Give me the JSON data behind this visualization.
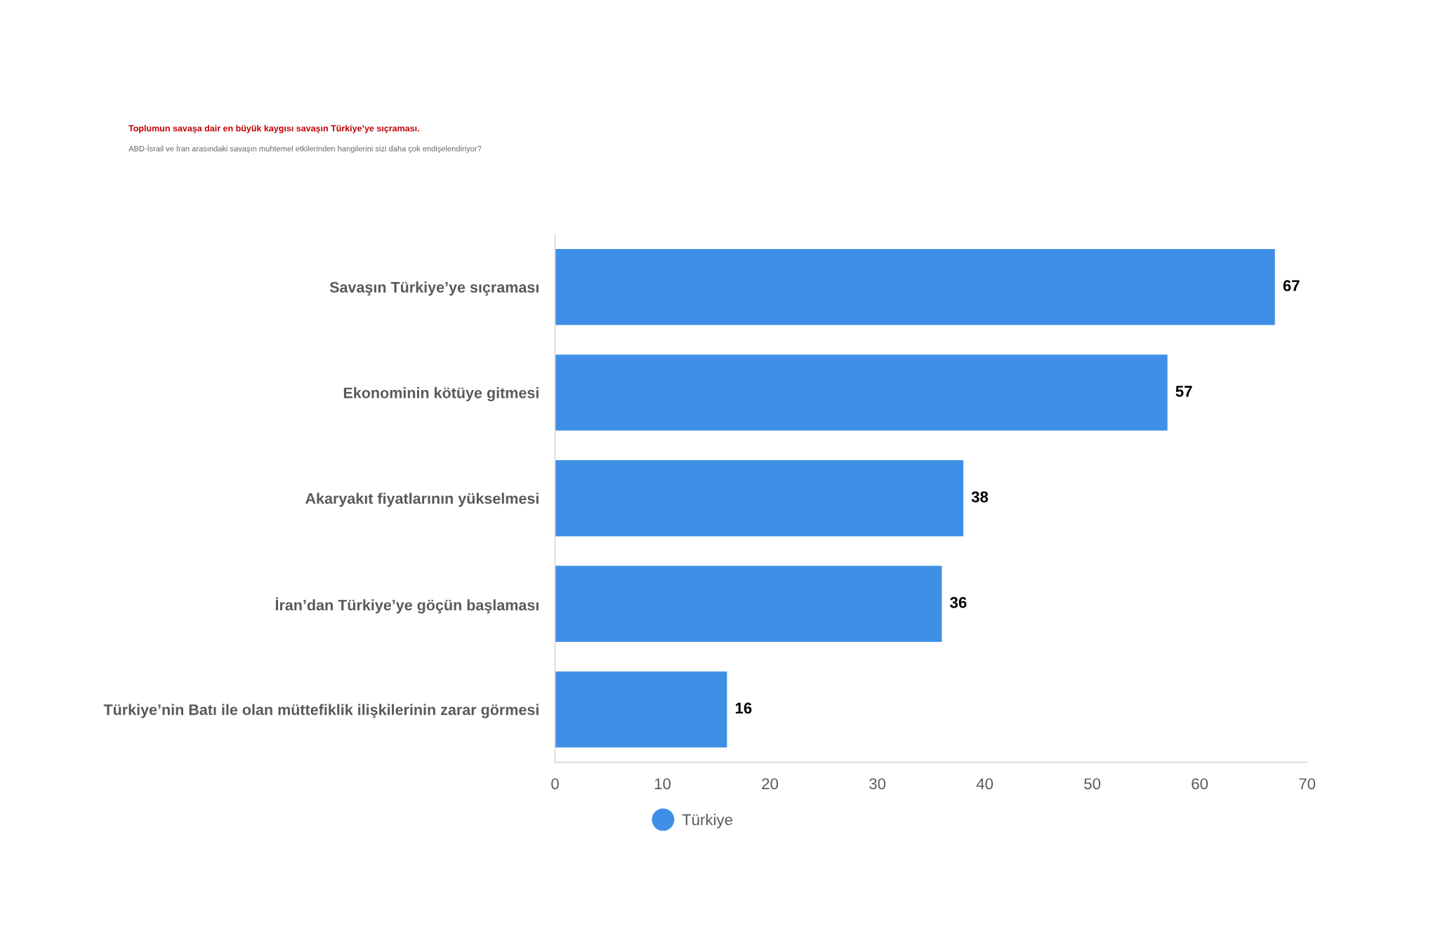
{
  "chart_data": {
    "type": "bar",
    "orientation": "horizontal",
    "title": "Toplumun savaşa dair en büyük kaygısı savaşın Türkiye’ye sıçraması.",
    "subtitle": "ABD-İsrail ve İran arasındaki savaşın muhtemel etkilerinden hangilerini sizi daha çok endişelendiriyor?",
    "categories": [
      "Savaşın Türkiye’ye sıçraması",
      "Ekonominin kötüye gitmesi",
      "Akaryakıt fiyatlarının yükselmesi",
      "İran’dan Türkiye’ye göçün başlaması",
      "Türkiye’nin Batı ile olan müttefiklik ilişkilerinin zarar görmesi"
    ],
    "series": [
      {
        "name": "Türkiye",
        "color": "#3f8fe6",
        "values": [
          67,
          57,
          38,
          36,
          16
        ]
      }
    ],
    "xlim": [
      0,
      70
    ],
    "xticks": [
      0,
      10,
      20,
      30,
      40,
      50,
      60,
      70
    ],
    "data_labels": true,
    "legend": "bottom"
  }
}
